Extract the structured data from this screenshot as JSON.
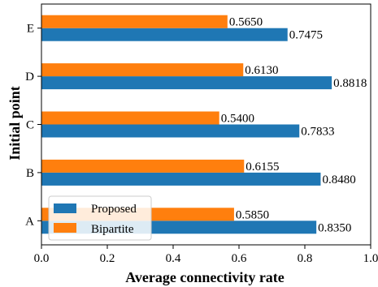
{
  "chart_data": {
    "type": "bar",
    "orientation": "horizontal",
    "categories": [
      "A",
      "B",
      "C",
      "D",
      "E"
    ],
    "series": [
      {
        "name": "Proposed",
        "color": "#1f77b4",
        "values": [
          0.835,
          0.848,
          0.7833,
          0.8818,
          0.7475
        ],
        "labels": [
          "0.8350",
          "0.8480",
          "0.7833",
          "0.8818",
          "0.7475"
        ]
      },
      {
        "name": "Bipartite",
        "color": "#ff7f0e",
        "values": [
          0.585,
          0.6155,
          0.54,
          0.613,
          0.565
        ],
        "labels": [
          "0.5850",
          "0.6155",
          "0.5400",
          "0.6130",
          "0.5650"
        ]
      }
    ],
    "xlabel": "Average connectivity rate",
    "ylabel": "Initial point",
    "xlim": [
      0.0,
      1.0
    ],
    "xticks": [
      "0.0",
      "0.2",
      "0.4",
      "0.6",
      "0.8",
      "1.0"
    ],
    "grid": false,
    "legend_position": "lower-left"
  }
}
